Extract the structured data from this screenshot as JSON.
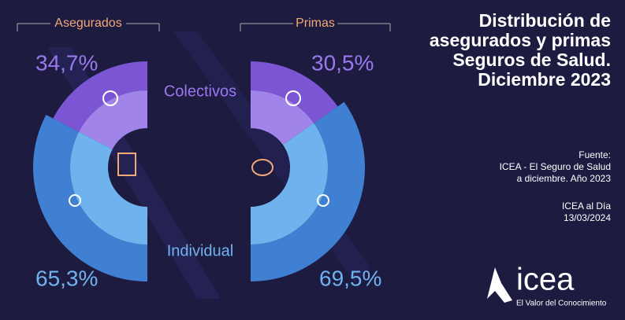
{
  "title": "Distribución de\nasegurados y primas\nSeguros de Salud.\nDiciembre 2023",
  "categories": [
    "Colectivos",
    "Individual"
  ],
  "chart_data": [
    {
      "type": "half-donut",
      "title": "Asegurados",
      "side": "left",
      "values": [
        34.7,
        65.3
      ],
      "value_labels": [
        "34,7%",
        "65,3%"
      ],
      "colors": [
        "#7b55d4",
        "#3f80d3"
      ],
      "inner_colors": [
        "#a184ea",
        "#6fb3ee"
      ]
    },
    {
      "type": "half-donut",
      "title": "Primas",
      "side": "right",
      "values": [
        30.5,
        69.5
      ],
      "value_labels": [
        "30,5%",
        "69,5%"
      ],
      "colors": [
        "#7b55d4",
        "#3f80d3"
      ],
      "inner_colors": [
        "#a184ea",
        "#6fb3ee"
      ]
    }
  ],
  "source": "Fuente:\nICEA - El Seguro de Salud\na diciembre. Año 2023",
  "publication": "ICEA al Día\n13/03/2024",
  "brand": {
    "name": "icea",
    "tagline": "El Valor del Conocimiento"
  }
}
